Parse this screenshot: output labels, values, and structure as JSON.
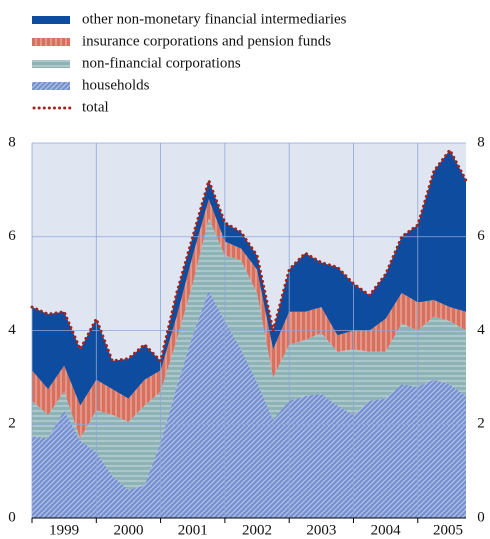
{
  "chart_data": {
    "type": "stacked_area",
    "years": [
      "1999",
      "2000",
      "2001",
      "2002",
      "2003",
      "2004",
      "2005"
    ],
    "quarters_per_year": 4,
    "series": [
      {
        "name": "other non-monetary financial intermediaries",
        "color": "#0d4c9e",
        "pattern": "solid",
        "kind": "area",
        "values": [
          1.35,
          1.6,
          1.15,
          1.2,
          1.3,
          0.6,
          0.85,
          0.75,
          0.2,
          0.5,
          0.4,
          0.4,
          0.4,
          0.35,
          0.3,
          0.4,
          0.9,
          1.25,
          0.95,
          1.45,
          1.0,
          0.75,
          0.95,
          1.2,
          1.65,
          2.75,
          3.35,
          2.8
        ]
      },
      {
        "name": "insurance corporations and pension funds",
        "color": "#d8705e",
        "pattern": "vertical",
        "kind": "area",
        "values": [
          0.65,
          0.55,
          0.55,
          0.7,
          0.65,
          0.55,
          0.5,
          0.55,
          0.45,
          0.5,
          0.6,
          0.4,
          0.3,
          0.25,
          0.5,
          0.6,
          0.7,
          0.6,
          0.55,
          0.35,
          0.4,
          0.45,
          0.7,
          0.65,
          0.6,
          0.35,
          0.3,
          0.4
        ]
      },
      {
        "name": "non-financial corporations",
        "color": "#8db3b6",
        "pattern": "horizontal",
        "kind": "area",
        "values": [
          0.75,
          0.5,
          0.4,
          0.05,
          0.9,
          1.3,
          1.45,
          1.7,
          1.1,
          1.0,
          1.1,
          1.55,
          1.4,
          1.9,
          1.9,
          0.9,
          1.2,
          1.2,
          1.3,
          1.15,
          1.4,
          1.05,
          1.0,
          1.3,
          1.2,
          1.35,
          1.35,
          1.4
        ]
      },
      {
        "name": "households",
        "color": "#7590d0",
        "pattern": "diagonal",
        "kind": "area",
        "values": [
          1.75,
          1.7,
          2.3,
          1.65,
          1.4,
          0.9,
          0.6,
          0.7,
          1.6,
          2.8,
          3.9,
          4.85,
          4.2,
          3.6,
          2.9,
          2.1,
          2.5,
          2.6,
          2.65,
          2.4,
          2.2,
          2.5,
          2.55,
          2.85,
          2.8,
          2.95,
          2.85,
          2.6
        ]
      },
      {
        "name": "total",
        "color": "#a3241c",
        "pattern": "dotted",
        "kind": "line",
        "values": [
          4.5,
          4.35,
          4.4,
          3.6,
          4.25,
          3.35,
          3.4,
          3.7,
          3.35,
          4.8,
          6.0,
          7.2,
          6.3,
          6.1,
          5.6,
          4.0,
          5.3,
          5.65,
          5.45,
          5.35,
          5.0,
          4.75,
          5.2,
          6.0,
          6.25,
          7.4,
          7.85,
          7.2
        ]
      }
    ],
    "ylim": [
      0,
      8
    ],
    "yticks": [
      0,
      2,
      4,
      6,
      8
    ],
    "y2lim": [
      0,
      8
    ],
    "y2ticks": [
      0,
      2,
      4,
      6,
      8
    ],
    "grid": true,
    "background": "#dfe6f2",
    "grid_color": "#8fa6d8"
  }
}
